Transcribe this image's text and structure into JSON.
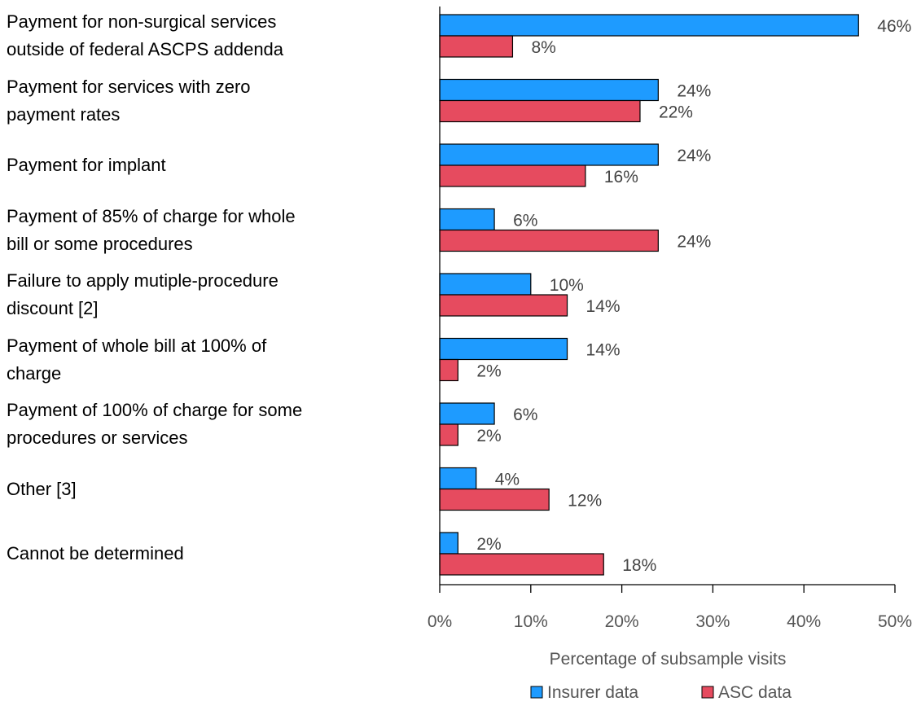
{
  "chart_data": {
    "type": "bar",
    "orientation": "horizontal",
    "categories": [
      "Payment for non-surgical services\noutside of federal ASCPS addenda",
      "Payment for services with zero\npayment rates",
      "Payment for implant",
      "Payment of 85% of charge for whole\nbill or some procedures",
      "Failure to apply mutiple-procedure\ndiscount [2]",
      "Payment of whole bill at 100% of\ncharge",
      "Payment of 100% of charge for some\nprocedures or services",
      "Other [3]",
      "Cannot be determined"
    ],
    "series": [
      {
        "name": "Insurer data",
        "color": "#1e9bff",
        "values": [
          46,
          24,
          24,
          6,
          10,
          14,
          6,
          4,
          2
        ]
      },
      {
        "name": "ASC data",
        "color": "#e64b5f",
        "values": [
          8,
          22,
          16,
          24,
          14,
          2,
          2,
          12,
          18
        ]
      }
    ],
    "xlabel": "Percentage of subsample visits",
    "xlim": [
      0,
      50
    ],
    "xticks": [
      "0%",
      "10%",
      "20%",
      "30%",
      "40%",
      "50%"
    ],
    "value_suffix": "%",
    "grid": false,
    "legend_position": "bottom"
  }
}
